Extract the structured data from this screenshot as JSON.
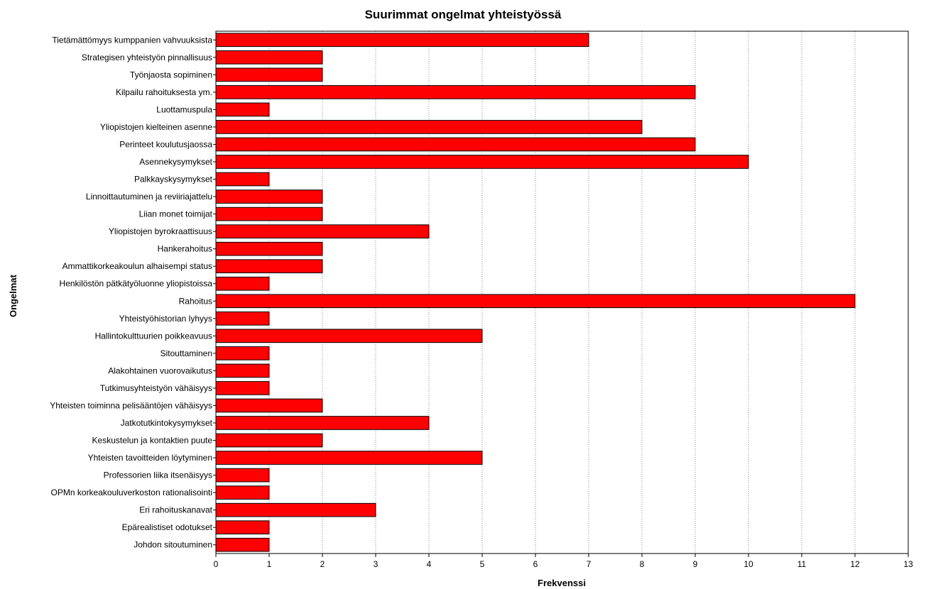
{
  "chart_data": {
    "type": "bar",
    "orientation": "horizontal",
    "title": "Suurimmat ongelmat yhteistyössä",
    "xlabel": "Frekvenssi",
    "ylabel": "Ongelmat",
    "xlim": [
      0,
      13
    ],
    "xticks": [
      "0",
      "1",
      "2",
      "3",
      "4",
      "5",
      "6",
      "7",
      "8",
      "9",
      "10",
      "11",
      "12",
      "13"
    ],
    "grid": "vertical dotted",
    "bar_color": "#ff0000",
    "categories": [
      "Tietämättömyys kumppanien vahvuuksista",
      "Strategisen yhteistyön pinnallisuus",
      "Työnjaosta sopiminen",
      "Kilpailu rahoituksesta ym.",
      "Luottamuspula",
      "Yliopistojen kielteinen asenne",
      "Perinteet koulutusjaossa",
      "Asennekysymykset",
      "Palkkayskysymykset",
      "Linnoittautuminen ja reviiriajattelu",
      "Liian monet toimijat",
      "Yliopistojen byrokraattisuus",
      "Hankerahoitus",
      "Ammattikorkeakoulun alhaisempi status",
      "Henkilöstön pätkätyöluonne yliopistoissa",
      "Rahoitus",
      "Yhteistyöhistorian lyhyys",
      "Hallintokulttuurien poikkeavuus",
      "Sitouttaminen",
      "Alakohtainen vuorovaikutus",
      "Tutkimusyhteistyön vähäisyys",
      "Yhteisten toiminna pelisääntöjen vähäisyys",
      "Jatkotutkintokysymykset",
      "Keskustelun ja kontaktien puute",
      "Yhteisten tavoitteiden löytyminen",
      "Professorien liika itsenäisyys",
      "OPMn korkeakouluverkoston rationalisointi",
      "Eri rahoituskanavat",
      "Epärealistiset odotukset",
      "Johdon sitoutuminen"
    ],
    "values": [
      7,
      2,
      2,
      9,
      1,
      8,
      9,
      10,
      1,
      2,
      2,
      4,
      2,
      2,
      1,
      12,
      1,
      5,
      1,
      1,
      1,
      2,
      4,
      2,
      5,
      1,
      1,
      3,
      1,
      1
    ]
  }
}
